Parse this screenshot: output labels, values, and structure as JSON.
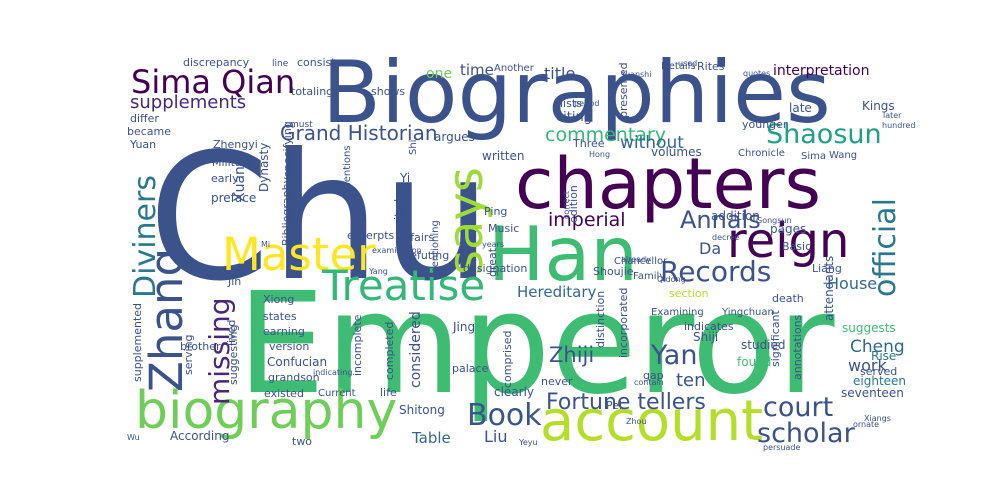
{
  "words": [
    {
      "text": "Chu",
      "color": "#3b528b"
    },
    {
      "text": "Emperor",
      "color": "#3fbc73"
    },
    {
      "text": "Biographies",
      "color": "#3b528b"
    },
    {
      "text": "chapters",
      "color": "#440154"
    },
    {
      "text": "account",
      "color": "#b5de2b"
    },
    {
      "text": "Han",
      "color": "#3fbc73"
    },
    {
      "text": "biography",
      "color": "#6ece58"
    },
    {
      "text": "reign",
      "color": "#440154"
    },
    {
      "text": "Master",
      "color": "#fde725"
    },
    {
      "text": "says",
      "color": "#a0da39"
    },
    {
      "text": "Treatise",
      "color": "#35b779"
    },
    {
      "text": "Zhang",
      "color": "#3b528b"
    },
    {
      "text": "Sima Qian",
      "color": "#440154"
    },
    {
      "text": "official",
      "color": "#2a788e"
    },
    {
      "text": "Diviners",
      "color": "#2a788e"
    },
    {
      "text": "Records",
      "color": "#3b528b"
    },
    {
      "text": "Book",
      "color": "#39568c"
    },
    {
      "text": "missing",
      "color": "#482878"
    },
    {
      "text": "Annals",
      "color": "#3b528b"
    },
    {
      "text": "Yan",
      "color": "#3b528b"
    },
    {
      "text": "court",
      "color": "#3b528b"
    },
    {
      "text": "scholar",
      "color": "#3b528b"
    },
    {
      "text": "Shaosun",
      "color": "#1fa088"
    },
    {
      "text": "Fortune tellers",
      "color": "#3b528b"
    },
    {
      "text": "Grand Historian",
      "color": "#3b528b"
    },
    {
      "text": "Zhiji",
      "color": "#3b528b"
    },
    {
      "text": "commentary",
      "color": "#35b779"
    },
    {
      "text": "supplements",
      "color": "#482878"
    },
    {
      "text": "imperial",
      "color": "#440154"
    },
    {
      "text": "Hereditary",
      "color": "#31688e"
    },
    {
      "text": "House",
      "color": "#31688e"
    },
    {
      "text": "Liu",
      "color": "#3b528b"
    },
    {
      "text": "Table",
      "color": "#31688e"
    },
    {
      "text": "ten",
      "color": "#3b528b"
    },
    {
      "text": "Cheng",
      "color": "#31688e"
    },
    {
      "text": "work",
      "color": "#3b528b"
    },
    {
      "text": "interpretation",
      "color": "#440154"
    },
    {
      "text": "without",
      "color": "#31688e"
    },
    {
      "text": "title",
      "color": "#3b528b"
    },
    {
      "text": "time",
      "color": "#3b528b"
    },
    {
      "text": "one",
      "color": "#6ece58"
    },
    {
      "text": "Da",
      "color": "#3b528b"
    },
    {
      "text": "addition",
      "color": "#3b528b"
    },
    {
      "text": "Xuan",
      "color": "#3b528b"
    },
    {
      "text": "Yi",
      "color": "#3b528b"
    },
    {
      "text": "Ju",
      "color": "#3b528b"
    },
    {
      "text": "section",
      "color": "#b5de2b"
    },
    {
      "text": "Jin",
      "color": "#3b528b"
    },
    {
      "text": "considered",
      "color": "#3b528b"
    },
    {
      "text": "suggests",
      "color": "#3fbc73"
    },
    {
      "text": "Rise",
      "color": "#2a788e"
    },
    {
      "text": "served",
      "color": "#3b528b"
    },
    {
      "text": "seventeen",
      "color": "#3b528b"
    },
    {
      "text": "eighteen",
      "color": "#2a788e"
    },
    {
      "text": "studied",
      "color": "#3b528b"
    },
    {
      "text": "found",
      "color": "#3fbc73"
    },
    {
      "text": "Pei",
      "color": "#3b528b"
    },
    {
      "text": "Shitong",
      "color": "#3b528b"
    },
    {
      "text": "two",
      "color": "#3b528b"
    },
    {
      "text": "According",
      "color": "#3b528b"
    },
    {
      "text": "existed",
      "color": "#3b528b"
    },
    {
      "text": "Current",
      "color": "#3b528b"
    },
    {
      "text": "life",
      "color": "#3b528b"
    },
    {
      "text": "clearly",
      "color": "#3b528b"
    },
    {
      "text": "gap",
      "color": "#3b528b"
    },
    {
      "text": "never",
      "color": "#3b528b"
    },
    {
      "text": "palace",
      "color": "#3b528b"
    },
    {
      "text": "Jing",
      "color": "#3b528b"
    },
    {
      "text": "indicates",
      "color": "#3b528b"
    },
    {
      "text": "Shiji",
      "color": "#3b528b"
    },
    {
      "text": "Examining",
      "color": "#3b528b"
    },
    {
      "text": "Yingchuan",
      "color": "#3b528b"
    },
    {
      "text": "death",
      "color": "#3b528b"
    },
    {
      "text": "Family",
      "color": "#3b528b"
    },
    {
      "text": "Shoujie",
      "color": "#3b528b"
    },
    {
      "text": "Chancellor",
      "color": "#3b528b"
    },
    {
      "text": "pages",
      "color": "#3b528b"
    },
    {
      "text": "Basic",
      "color": "#3b528b"
    },
    {
      "text": "Liang",
      "color": "#3b528b"
    },
    {
      "text": "Chronicle",
      "color": "#3b528b"
    },
    {
      "text": "Sima",
      "color": "#3b528b"
    },
    {
      "text": "Wang",
      "color": "#3b528b"
    },
    {
      "text": "younger",
      "color": "#3b528b"
    },
    {
      "text": "volumes",
      "color": "#3b528b"
    },
    {
      "text": "Details",
      "color": "#3b528b"
    },
    {
      "text": "Rites",
      "color": "#3b528b"
    },
    {
      "text": "late",
      "color": "#3b528b"
    },
    {
      "text": "Kings",
      "color": "#3b528b"
    },
    {
      "text": "later",
      "color": "#3b528b"
    },
    {
      "text": "hundred",
      "color": "#3b528b"
    },
    {
      "text": "quotes",
      "color": "#3b528b"
    },
    {
      "text": "used",
      "color": "#3b528b"
    },
    {
      "text": "citing",
      "color": "#3b528b"
    },
    {
      "text": "lists",
      "color": "#3b528b"
    },
    {
      "text": "Three",
      "color": "#3b528b"
    },
    {
      "text": "argues",
      "color": "#3b528b"
    },
    {
      "text": "written",
      "color": "#3b528b"
    },
    {
      "text": "Another",
      "color": "#3b528b"
    },
    {
      "text": "presented",
      "color": "#3b528b"
    },
    {
      "text": "period",
      "color": "#3b528b"
    },
    {
      "text": "Yuanshi",
      "color": "#3b528b"
    },
    {
      "text": "line",
      "color": "#3b528b"
    },
    {
      "text": "consists",
      "color": "#3b528b"
    },
    {
      "text": "discrepancy",
      "color": "#3b528b"
    },
    {
      "text": "totaling",
      "color": "#3b528b"
    },
    {
      "text": "differ",
      "color": "#3b528b"
    },
    {
      "text": "became",
      "color": "#3b528b"
    },
    {
      "text": "Yuan",
      "color": "#3b528b"
    },
    {
      "text": "Zhengyi",
      "color": "#3b528b"
    },
    {
      "text": "Military",
      "color": "#3b528b"
    },
    {
      "text": "early",
      "color": "#3b528b"
    },
    {
      "text": "preface",
      "color": "#3b528b"
    },
    {
      "text": "Dynasty",
      "color": "#3b528b"
    },
    {
      "text": "specifying",
      "color": "#3b528b"
    },
    {
      "text": "must",
      "color": "#3b528b"
    },
    {
      "text": "shows",
      "color": "#3b528b"
    },
    {
      "text": "Shi",
      "color": "#3b528b"
    },
    {
      "text": "mentions",
      "color": "#3b528b"
    },
    {
      "text": "Bibliography",
      "color": "#3b528b"
    },
    {
      "text": "mentioning",
      "color": "#3b528b"
    },
    {
      "text": "examination",
      "color": "#3b528b"
    },
    {
      "text": "Ping",
      "color": "#3b528b"
    },
    {
      "text": "Music",
      "color": "#3b528b"
    },
    {
      "text": "edition",
      "color": "#3b528b"
    },
    {
      "text": "correct",
      "color": "#3b528b"
    },
    {
      "text": "Hong",
      "color": "#3b528b"
    },
    {
      "text": "Gongsun",
      "color": "#3b528b"
    },
    {
      "text": "decree",
      "color": "#3b528b"
    },
    {
      "text": "excerpts",
      "color": "#3b528b"
    },
    {
      "text": "Affairs",
      "color": "#3b528b"
    },
    {
      "text": "cited",
      "color": "#3b528b"
    },
    {
      "text": "refuting",
      "color": "#3b528b"
    },
    {
      "text": "years",
      "color": "#3b528b"
    },
    {
      "text": "Mi",
      "color": "#3b528b"
    },
    {
      "text": "Yang",
      "color": "#3b528b"
    },
    {
      "text": "designation",
      "color": "#3b528b"
    },
    {
      "text": "great",
      "color": "#3b528b"
    },
    {
      "text": "already",
      "color": "#3b528b"
    },
    {
      "text": "Qidong",
      "color": "#3b528b"
    },
    {
      "text": "Xiong",
      "color": "#3b528b"
    },
    {
      "text": "states",
      "color": "#3b528b"
    },
    {
      "text": "earning",
      "color": "#3b528b"
    },
    {
      "text": "version",
      "color": "#3b528b"
    },
    {
      "text": "Confucian",
      "color": "#3b528b"
    },
    {
      "text": "grandson",
      "color": "#3b528b"
    },
    {
      "text": "brother",
      "color": "#3b528b"
    },
    {
      "text": "lived",
      "color": "#3b528b"
    },
    {
      "text": "serving",
      "color": "#3b528b"
    },
    {
      "text": "suggesting",
      "color": "#3b528b"
    },
    {
      "text": "supplemented",
      "color": "#3b528b"
    },
    {
      "text": "incomplete",
      "color": "#3b528b"
    },
    {
      "text": "completed",
      "color": "#3b528b"
    },
    {
      "text": "indicating",
      "color": "#3b528b"
    },
    {
      "text": "distinction",
      "color": "#3b528b"
    },
    {
      "text": "incorporated",
      "color": "#3b528b"
    },
    {
      "text": "comprised",
      "color": "#3b528b"
    },
    {
      "text": "significant",
      "color": "#3b528b"
    },
    {
      "text": "annotations",
      "color": "#3b528b"
    },
    {
      "text": "attendants",
      "color": "#3b528b"
    },
    {
      "text": "contain",
      "color": "#3b528b"
    },
    {
      "text": "ornate",
      "color": "#3b528b"
    },
    {
      "text": "Yeyu",
      "color": "#3b528b"
    },
    {
      "text": "Zhou",
      "color": "#3b528b"
    },
    {
      "text": "Wu",
      "color": "#3b528b"
    },
    {
      "text": "persuade",
      "color": "#3b528b"
    },
    {
      "text": "Xiangs",
      "color": "#3b528b"
    },
    {
      "text": "prose",
      "color": "#3b528b"
    }
  ]
}
